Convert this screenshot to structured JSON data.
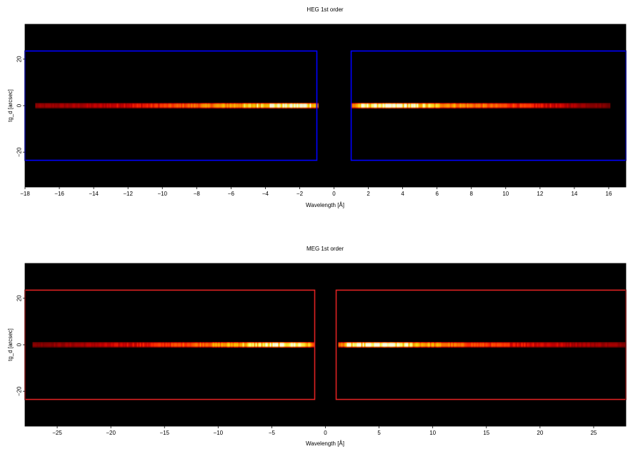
{
  "chart_data": [
    {
      "type": "heatmap",
      "title": "HEG 1st order",
      "xlabel": "Wavelength [Å]",
      "ylabel": "tg_d [arcsec]",
      "xlim": [
        -18,
        17
      ],
      "ylim": [
        -35,
        35
      ],
      "xticks": [
        -18,
        -16,
        -14,
        -12,
        -10,
        -8,
        -6,
        -4,
        -2,
        0,
        2,
        4,
        6,
        8,
        10,
        12,
        14,
        16
      ],
      "xtick_labels": [
        "−18",
        "−16",
        "−14",
        "−12",
        "−10",
        "−8",
        "−6",
        "−4",
        "−2",
        "0",
        "2",
        "4",
        "6",
        "8",
        "10",
        "12",
        "14",
        "16"
      ],
      "yticks": [
        -20,
        0,
        20
      ],
      "ytick_labels": [
        "−20",
        "0",
        "20"
      ],
      "background": "#000000",
      "spectrum": {
        "y_center": 0,
        "y_halfwidth": 1.2,
        "minus_arm": {
          "x_range": [
            -17.4,
            -0.9
          ],
          "profile": [
            [
              -17.4,
              0.15
            ],
            [
              -14,
              0.22
            ],
            [
              -11,
              0.32
            ],
            [
              -9,
              0.45
            ],
            [
              -7,
              0.6
            ],
            [
              -5,
              0.72
            ],
            [
              -3.5,
              0.95
            ],
            [
              -2,
              1.0
            ],
            [
              -1.3,
              0.9
            ],
            [
              -0.9,
              0.5
            ]
          ]
        },
        "plus_arm": {
          "x_range": [
            1.0,
            16.1
          ],
          "profile": [
            [
              1.0,
              0.5
            ],
            [
              1.5,
              0.85
            ],
            [
              2.5,
              1.0
            ],
            [
              4,
              0.95
            ],
            [
              6,
              0.7
            ],
            [
              8,
              0.55
            ],
            [
              10,
              0.42
            ],
            [
              12,
              0.3
            ],
            [
              14,
              0.2
            ],
            [
              16.1,
              0.1
            ]
          ]
        }
      },
      "regions": [
        {
          "x": [
            -18,
            -1
          ],
          "y": [
            -23.5,
            23.5
          ],
          "color": "#0000ff"
        },
        {
          "x": [
            1,
            17
          ],
          "y": [
            -23.5,
            23.5
          ],
          "color": "#0000ff"
        }
      ]
    },
    {
      "type": "heatmap",
      "title": "MEG 1st order",
      "xlabel": "Wavelength [Å]",
      "ylabel": "tg_d [arcsec]",
      "xlim": [
        -28,
        28
      ],
      "ylim": [
        -35,
        35
      ],
      "xticks": [
        -25,
        -20,
        -15,
        -10,
        -5,
        0,
        5,
        10,
        15,
        20,
        25
      ],
      "xtick_labels": [
        "−25",
        "−20",
        "−15",
        "−10",
        "−5",
        "0",
        "5",
        "10",
        "15",
        "20",
        "25"
      ],
      "yticks": [
        -20,
        0,
        20
      ],
      "ytick_labels": [
        "−20",
        "0",
        "20"
      ],
      "background": "#000000",
      "spectrum": {
        "y_center": 0,
        "y_halfwidth": 1.2,
        "minus_arm": {
          "x_range": [
            -27.3,
            -1.0
          ],
          "profile": [
            [
              -27.3,
              0.12
            ],
            [
              -22,
              0.2
            ],
            [
              -17,
              0.3
            ],
            [
              -13,
              0.45
            ],
            [
              -10,
              0.62
            ],
            [
              -7,
              0.78
            ],
            [
              -5,
              0.9
            ],
            [
              -3,
              1.0
            ],
            [
              -2,
              0.85
            ],
            [
              -1.0,
              0.45
            ]
          ]
        },
        "plus_arm": {
          "x_range": [
            1.2,
            28
          ],
          "profile": [
            [
              1.2,
              0.45
            ],
            [
              2,
              0.85
            ],
            [
              4,
              0.95
            ],
            [
              6,
              1.0
            ],
            [
              9,
              0.7
            ],
            [
              13,
              0.45
            ],
            [
              18,
              0.32
            ],
            [
              23,
              0.22
            ],
            [
              28,
              0.15
            ]
          ]
        }
      },
      "regions": [
        {
          "x": [
            -28,
            -1
          ],
          "y": [
            -23.5,
            23.5
          ],
          "color": "#dd2222"
        },
        {
          "x": [
            1,
            28
          ],
          "y": [
            -23.5,
            23.5
          ],
          "color": "#dd2222"
        }
      ]
    }
  ]
}
